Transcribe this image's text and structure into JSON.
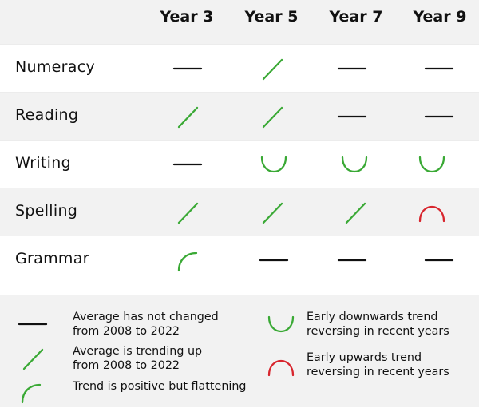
{
  "chart_data": {
    "type": "table",
    "columns": [
      "Year 3",
      "Year 5",
      "Year 7",
      "Year 9"
    ],
    "rows": [
      {
        "label": "Numeracy",
        "values": [
          "flat",
          "up",
          "flat",
          "flat"
        ]
      },
      {
        "label": "Reading",
        "values": [
          "up",
          "up",
          "flat",
          "flat"
        ]
      },
      {
        "label": "Writing",
        "values": [
          "flat",
          "down-reversing",
          "down-reversing",
          "down-reversing"
        ]
      },
      {
        "label": "Spelling",
        "values": [
          "up",
          "up",
          "up",
          "up-reversing"
        ]
      },
      {
        "label": "Grammar",
        "values": [
          "flattening",
          "flat",
          "flat",
          "flat"
        ]
      }
    ],
    "legend": [
      {
        "key": "flat",
        "line1": "Average has not changed",
        "line2": "from 2008 to 2022"
      },
      {
        "key": "up",
        "line1": "Average is trending up",
        "line2": "from 2008 to 2022"
      },
      {
        "key": "flattening",
        "line1": "Trend is positive but flattening",
        "line2": ""
      },
      {
        "key": "down-reversing",
        "line1": "Early downwards trend",
        "line2": "reversing in recent years"
      },
      {
        "key": "up-reversing",
        "line1": "Early upwards trend",
        "line2": "reversing in recent years"
      }
    ],
    "colors": {
      "flat": "#111111",
      "positive": "#3aa935",
      "negative": "#d8262e"
    },
    "icons": {
      "flat": "horizontal-line-icon",
      "up": "diagonal-up-line-icon",
      "flattening": "flattening-arc-icon",
      "down-reversing": "u-shape-arc-icon",
      "up-reversing": "n-shape-arc-icon"
    }
  }
}
